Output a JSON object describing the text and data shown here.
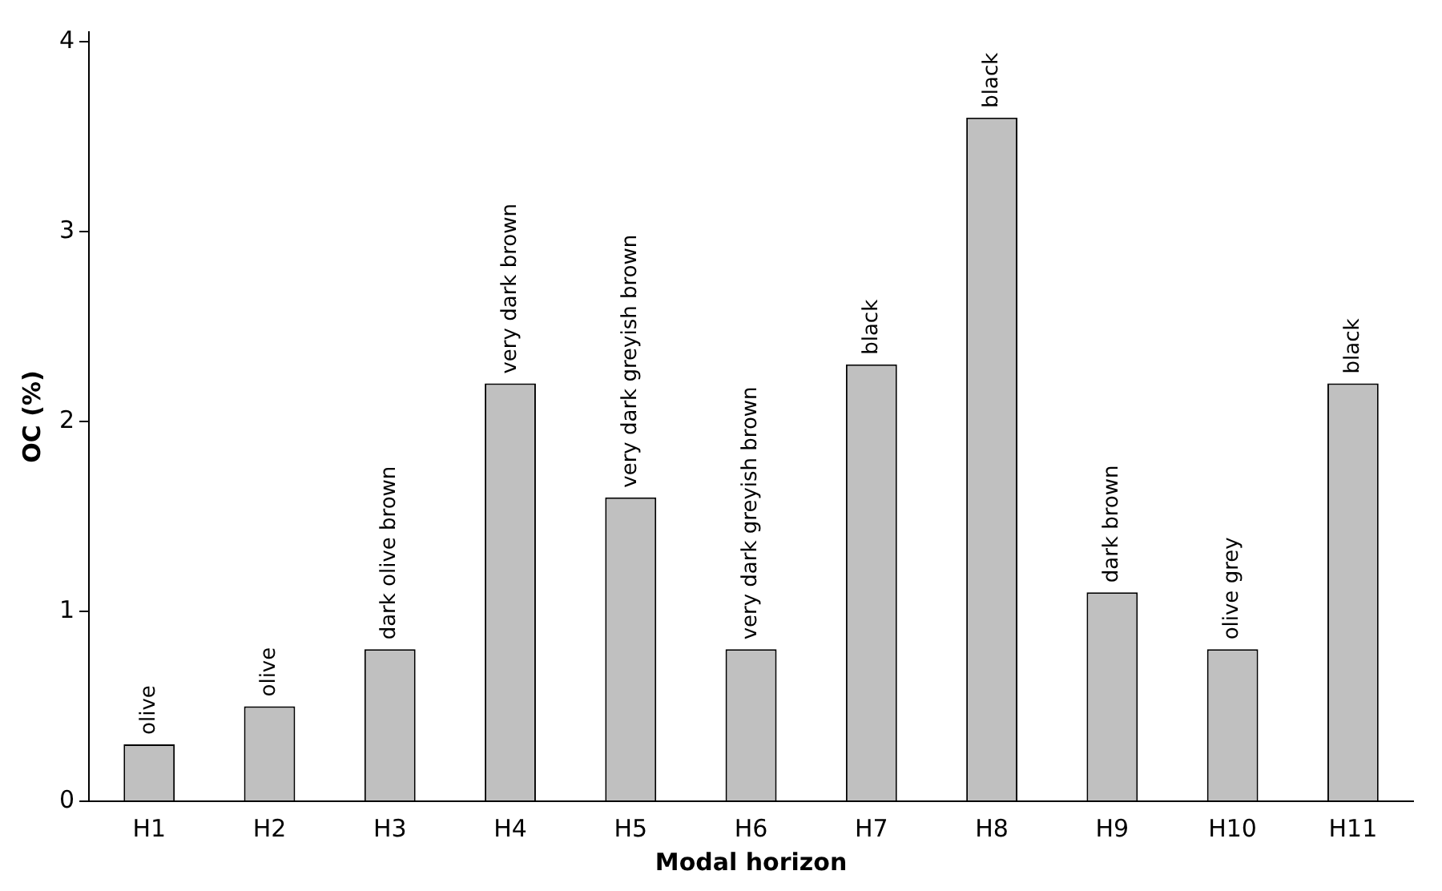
{
  "chart_data": {
    "type": "bar",
    "xlabel": "Modal horizon",
    "ylabel": "OC (%)",
    "categories": [
      "H1",
      "H2",
      "H3",
      "H4",
      "H5",
      "H6",
      "H7",
      "H8",
      "H9",
      "H10",
      "H11"
    ],
    "values": [
      0.3,
      0.5,
      0.8,
      2.2,
      1.6,
      0.8,
      2.3,
      3.6,
      1.1,
      0.8,
      2.2
    ],
    "value_labels": [
      "olive",
      "olive",
      "dark olive brown",
      "very dark brown",
      "very dark greyish brown",
      "very dark greyish brown",
      "black",
      "black",
      "dark brown",
      "olive grey",
      "black"
    ],
    "color": "#c0c0c0",
    "ylim": [
      0,
      4.05
    ],
    "yticks": [
      0,
      1,
      2,
      3,
      4
    ],
    "grid": false,
    "legend": false
  }
}
